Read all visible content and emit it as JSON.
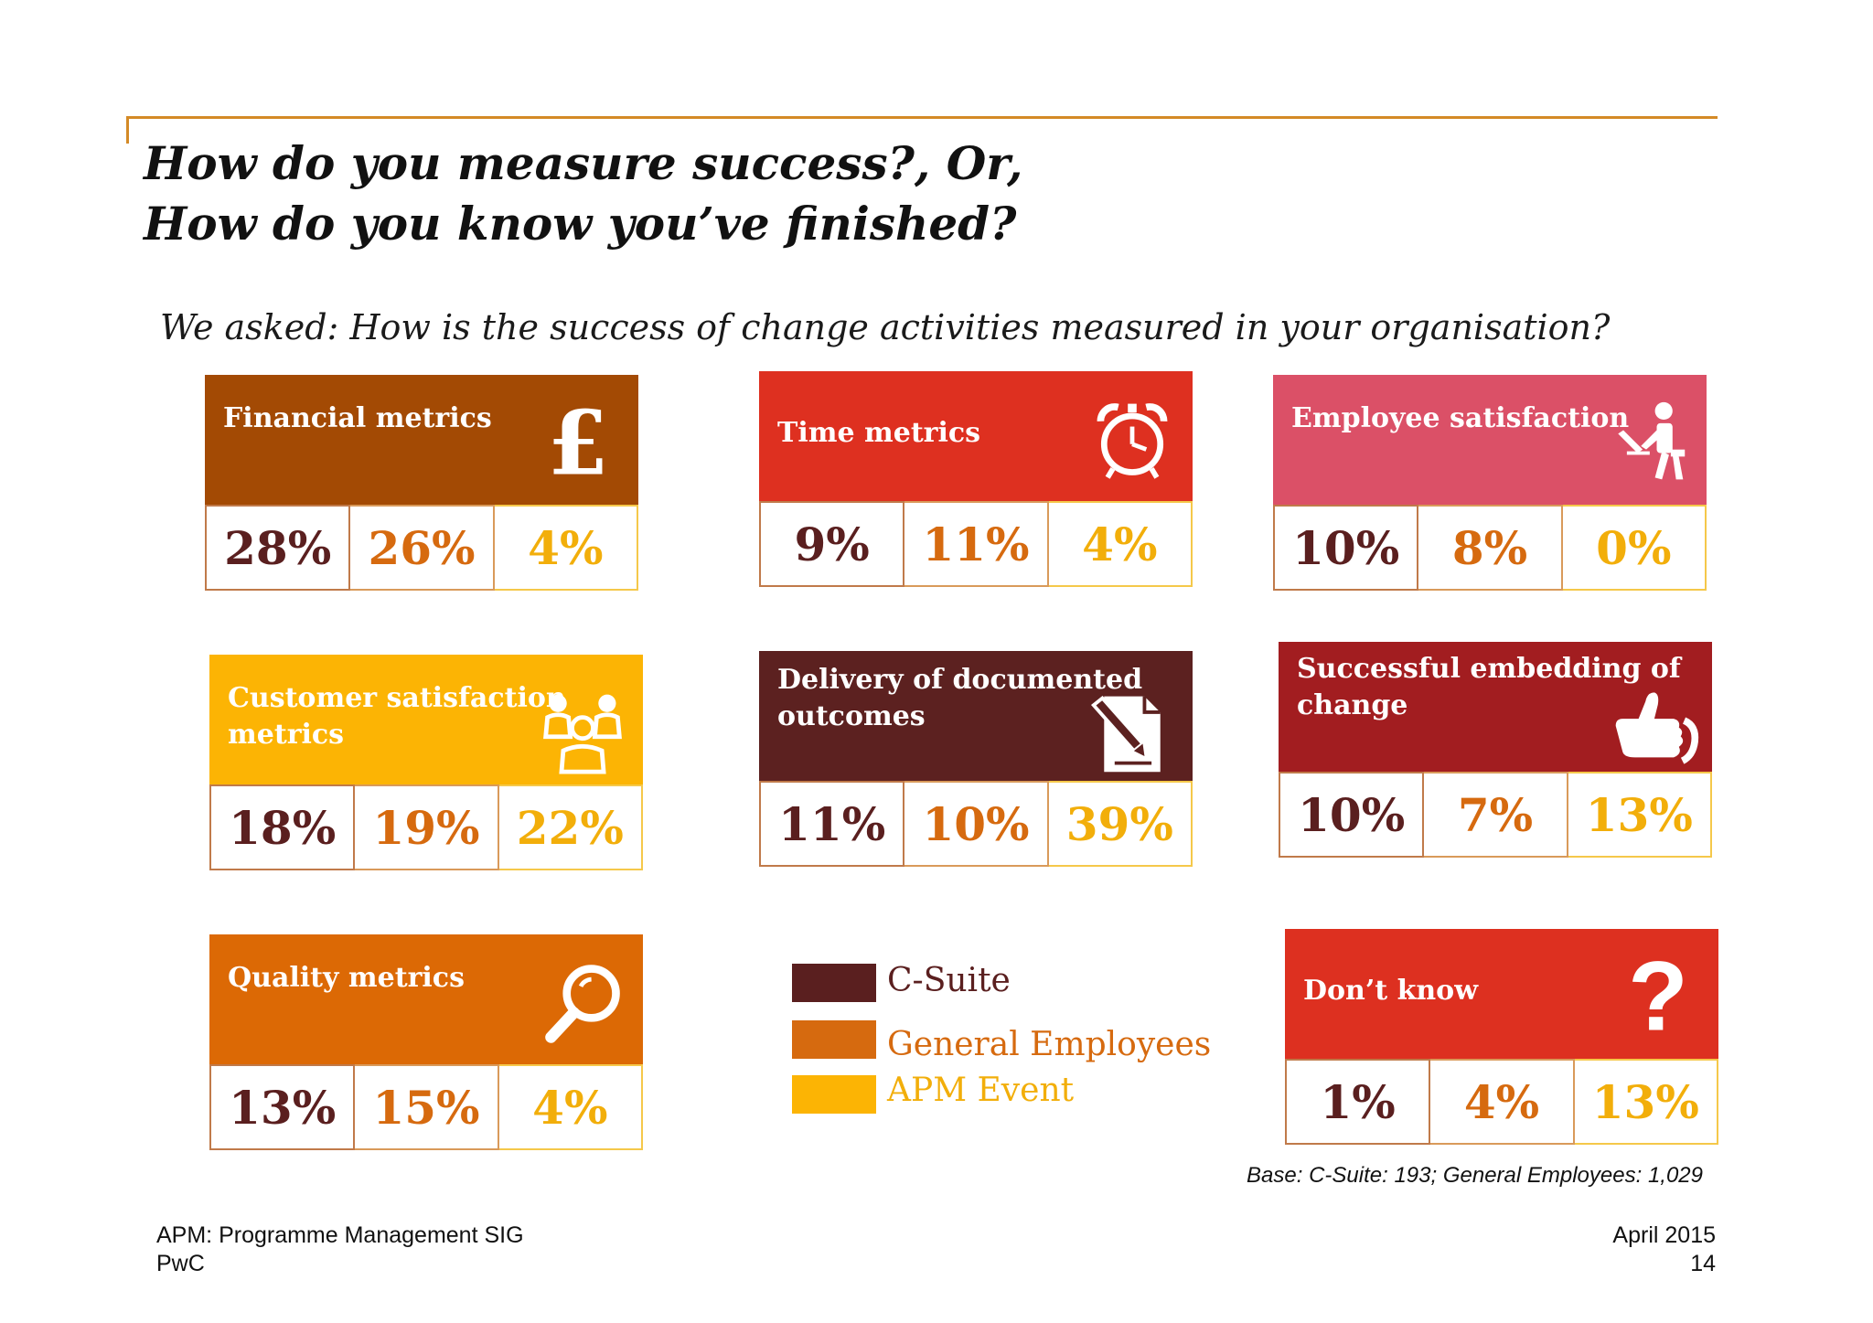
{
  "page": {
    "title_line1": "How do you measure success?, Or,",
    "title_line2": "How do you know you’ve finished?",
    "question": "We asked: How is the success of change activities measured in your organisation?",
    "base_note": "Base: C-Suite: 193; General Employees: 1,029",
    "footer_left_line1": "APM: Programme Management SIG",
    "footer_left_line2": "PwC",
    "footer_right_line1": "April 2015",
    "footer_right_line2": "14"
  },
  "colors": {
    "c_suite": "#5a1f1f",
    "general_employees": "#d66a0f",
    "apm_event": "#f2ae0a"
  },
  "cards": [
    {
      "label": "Financial metrics",
      "icon": "pound-sign-icon",
      "color": "#a34a04",
      "values": [
        "28%",
        "26%",
        "4%"
      ]
    },
    {
      "label": "Time  metrics",
      "icon": "alarm-clock-icon",
      "color": "#de3020",
      "values": [
        "9%",
        "11%",
        "4%"
      ]
    },
    {
      "label": "Employee satisfaction",
      "icon": "person-at-desk-icon",
      "color": "#db5067",
      "values": [
        "10%",
        "8%",
        "0%"
      ]
    },
    {
      "label": "Customer satisfaction metrics",
      "icon": "people-group-icon",
      "color": "#fcb404",
      "values": [
        "18%",
        "19%",
        "22%"
      ]
    },
    {
      "label": "Delivery of documented outcomes",
      "icon": "document-pen-icon",
      "color": "#5c2120",
      "values": [
        "11%",
        "10%",
        "39%"
      ]
    },
    {
      "label": "Successful embedding of change",
      "icon": "thumbs-up-icon",
      "color": "#a21d20",
      "values": [
        "10%",
        "7%",
        "13%"
      ]
    },
    {
      "label": "Quality  metrics",
      "icon": "magnifier-icon",
      "color": "#dc6905",
      "values": [
        "13%",
        "15%",
        "4%"
      ]
    },
    {
      "label": "Don’t know",
      "icon": "question-mark-icon",
      "color": "#dd3020",
      "values": [
        "1%",
        "4%",
        "13%"
      ]
    }
  ],
  "legend": [
    {
      "label": "C-Suite",
      "color": "#5a1f1f"
    },
    {
      "label": "General Employees",
      "color": "#d66a0f"
    },
    {
      "label": "APM Event",
      "color": "#fcb404"
    }
  ],
  "chart_data": {
    "type": "table",
    "title": "How do you measure success?, Or, How do you know you’ve finished?",
    "series": [
      {
        "name": "C-Suite",
        "values": [
          28,
          9,
          10,
          18,
          11,
          10,
          13,
          1
        ]
      },
      {
        "name": "General Employees",
        "values": [
          26,
          11,
          8,
          19,
          10,
          7,
          15,
          4
        ]
      },
      {
        "name": "APM Event",
        "values": [
          4,
          4,
          0,
          22,
          39,
          13,
          4,
          13
        ]
      }
    ],
    "categories": [
      "Financial metrics",
      "Time  metrics",
      "Employee satisfaction",
      "Customer satisfaction metrics",
      "Delivery of documented outcomes",
      "Successful embedding of change",
      "Quality  metrics",
      "Don’t know"
    ],
    "unit": "%"
  }
}
